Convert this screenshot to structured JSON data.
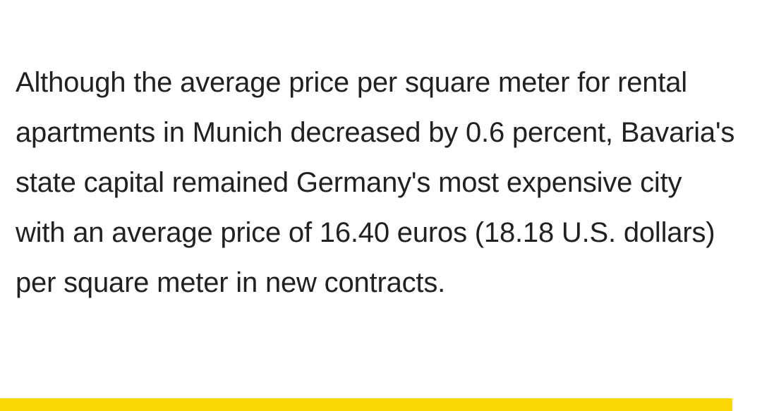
{
  "article": {
    "paragraph": "Although the average price per square meter for rental apartments in Munich decreased by 0.6 percent, Bavaria's state capital remained Germany's most expensive city with an average price of 16.40 euros (18.18 U.S. dollars) per square meter in new contracts."
  },
  "colors": {
    "background": "#ffffff",
    "text": "#212121",
    "accent_bar": "#f8d800"
  }
}
